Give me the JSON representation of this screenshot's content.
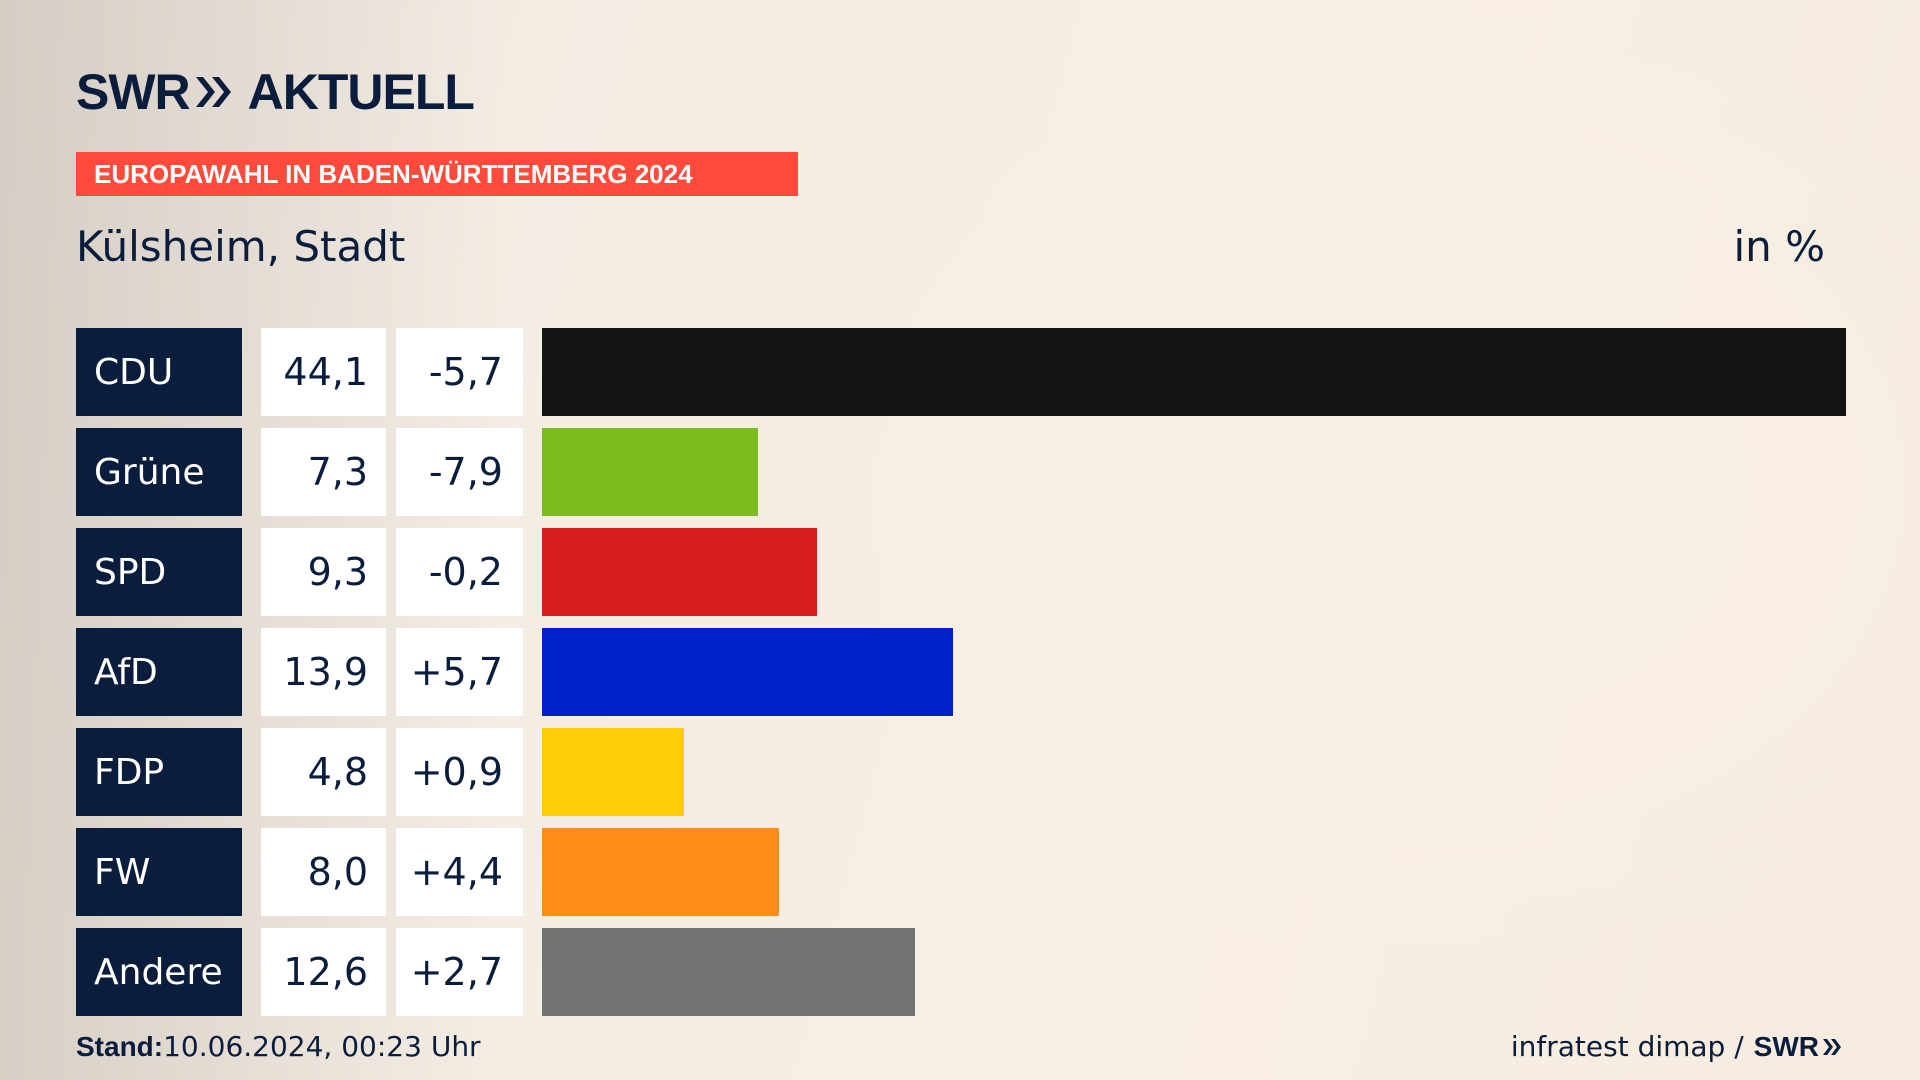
{
  "header": {
    "brand_left": "SWR",
    "brand_right": "AKTUELL",
    "banner": "EUROPAWAHL IN BADEN-WÜRTTEMBERG 2024",
    "subtitle": "Külsheim, Stadt",
    "unit": "in %"
  },
  "chart_data": {
    "type": "bar",
    "orientation": "horizontal",
    "title": "Külsheim, Stadt",
    "unit": "in %",
    "categories": [
      "CDU",
      "Grüne",
      "SPD",
      "AfD",
      "FDP",
      "FW",
      "Andere"
    ],
    "values": [
      44.1,
      7.3,
      9.3,
      13.9,
      4.8,
      8.0,
      12.6
    ],
    "value_labels": [
      "44,1",
      "7,3",
      "9,3",
      "13,9",
      "4,8",
      "8,0",
      "12,6"
    ],
    "diff_labels": [
      "-5,7",
      "-7,9",
      "-0,2",
      "+5,7",
      "+0,9",
      "+4,4",
      "+2,7"
    ],
    "colors": [
      "#141414",
      "#7bbd1e",
      "#d71f1f",
      "#0020c8",
      "#ffcd0a",
      "#ff8c17",
      "#737373"
    ],
    "xlim": [
      0,
      44.1
    ]
  },
  "footer": {
    "stand_label": "Stand:",
    "stand_value": "10.06.2024, 00:23 Uhr",
    "source": "infratest dimap /",
    "source_brand": "SWR"
  }
}
